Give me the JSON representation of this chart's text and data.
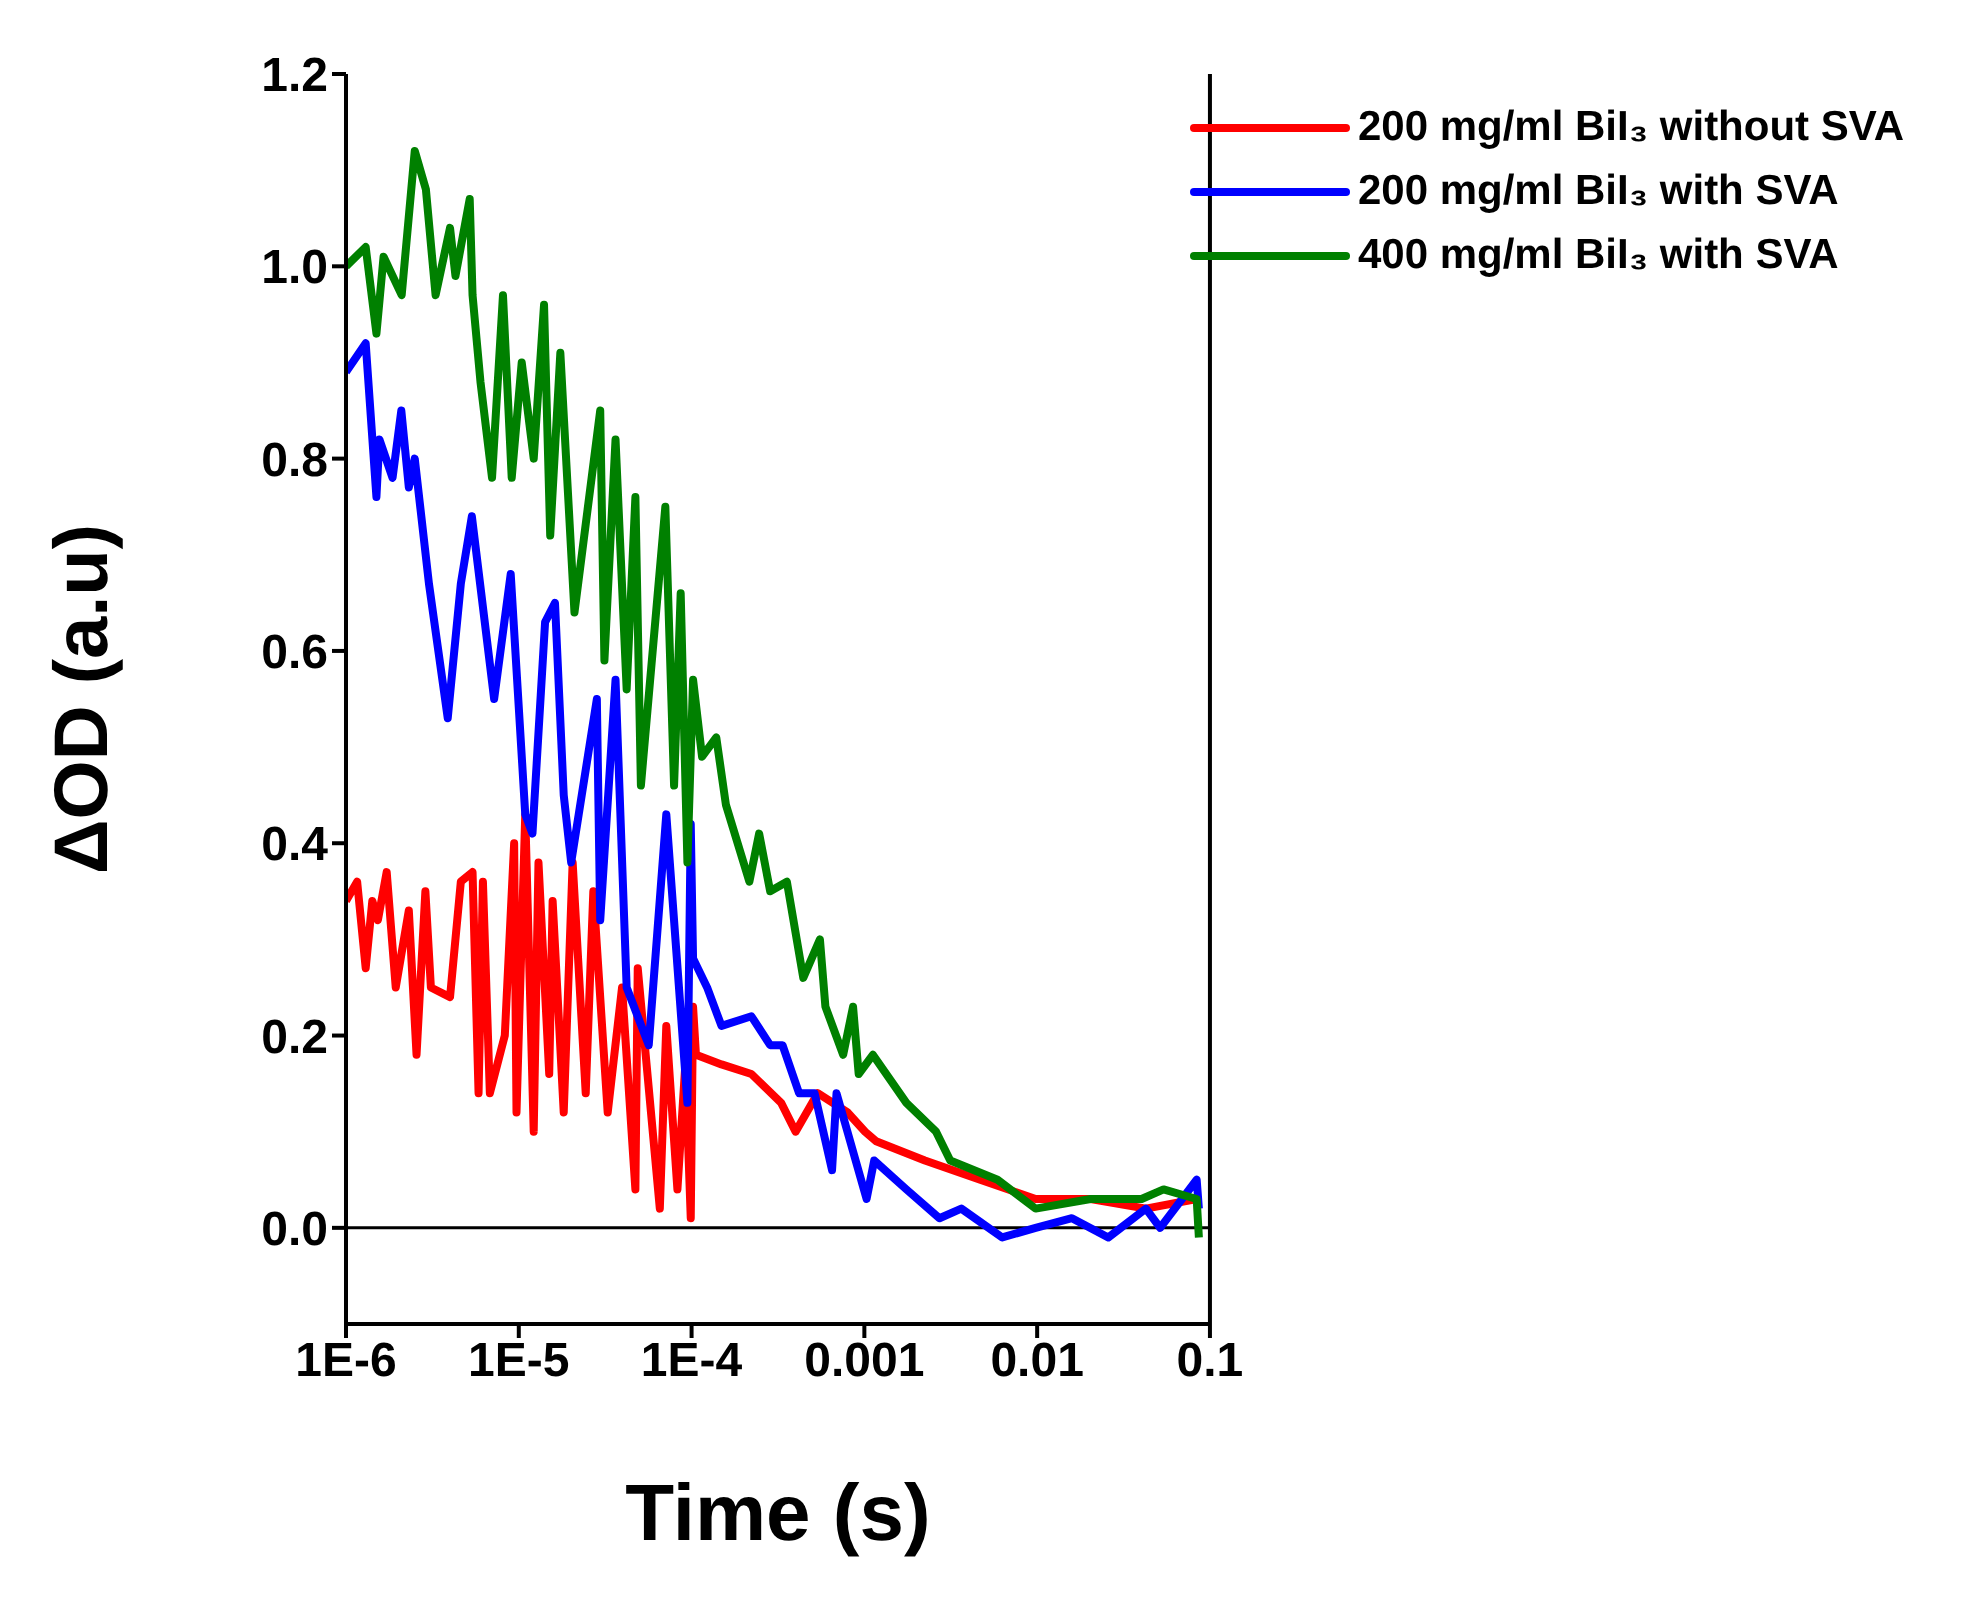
{
  "chart_data": {
    "type": "line",
    "xlabel": "Time (s)",
    "ylabel": "ΔOD (a.u)",
    "log": "x",
    "grid": false,
    "legend": "top right",
    "marker": "none",
    "line_style": "solid",
    "xlim": [
      1e-06,
      0.1
    ],
    "xticks": [
      {
        "value": 1e-06,
        "label": "1E-6"
      },
      {
        "value": 1e-05,
        "label": "1E-5"
      },
      {
        "value": 0.0001,
        "label": "1E-4"
      },
      0.001,
      0.01,
      0.1
    ],
    "ylim": [
      -0.1,
      1.2
    ],
    "yticks": [
      {
        "value": 0,
        "label": "0.0"
      },
      0.2,
      0.4,
      0.6,
      0.8,
      {
        "value": 1,
        "label": "1.0"
      },
      1.2
    ],
    "ref_lines": [
      {
        "axis": "y",
        "value": 0,
        "color": "#000000"
      }
    ],
    "series": [
      {
        "name": "200 mg/ml BiI₃ without SVA",
        "color": "#ff0000",
        "x": [
          1e-06,
          1.16e-06,
          1.3e-06,
          1.42e-06,
          1.53e-06,
          1.72e-06,
          1.94e-06,
          2.31e-06,
          2.56e-06,
          2.88e-06,
          3.1e-06,
          4e-06,
          4.62e-06,
          5.4e-06,
          5.85e-06,
          6.2e-06,
          6.8e-06,
          8.3e-06,
          9.4e-06,
          9.7e-06,
          1.09e-05,
          1.22e-05,
          1.3e-05,
          1.5e-05,
          1.57e-05,
          1.82e-05,
          2.05e-05,
          2.44e-05,
          2.7e-05,
          3.27e-05,
          3.96e-05,
          4.73e-05,
          4.88e-05,
          6.55e-05,
          7.14e-05,
          8.28e-05,
          9.2e-05,
          9.89e-05,
          0.000102,
          0.000106,
          0.000149,
          0.000222,
          0.00033,
          0.0004,
          0.000537,
          0.0008,
          0.00101,
          0.00117,
          0.00224,
          0.00468,
          0.0098,
          0.0204,
          0.0426,
          0.0838
        ],
        "values": [
          0.34,
          0.36,
          0.27,
          0.34,
          0.32,
          0.37,
          0.25,
          0.33,
          0.18,
          0.35,
          0.25,
          0.24,
          0.36,
          0.37,
          0.14,
          0.36,
          0.14,
          0.2,
          0.4,
          0.12,
          0.43,
          0.1,
          0.38,
          0.16,
          0.34,
          0.12,
          0.38,
          0.14,
          0.35,
          0.12,
          0.25,
          0.04,
          0.27,
          0.02,
          0.21,
          0.04,
          0.17,
          0.01,
          0.23,
          0.18,
          0.17,
          0.16,
          0.13,
          0.1,
          0.14,
          0.12,
          0.1,
          0.09,
          0.07,
          0.05,
          0.03,
          0.03,
          0.02,
          0.03
        ]
      },
      {
        "name": "200 mg/ml BiI₃ with SVA",
        "color": "#0000ff",
        "x": [
          1e-06,
          1.3e-06,
          1.5e-06,
          1.56e-06,
          1.86e-06,
          2.09e-06,
          2.31e-06,
          2.5e-06,
          3.02e-06,
          3.88e-06,
          4.62e-06,
          5.35e-06,
          7.2e-06,
          8.98e-06,
          1.09e-05,
          1.2e-05,
          1.42e-05,
          1.62e-05,
          1.82e-05,
          2.01e-05,
          2.83e-05,
          2.96e-05,
          3.63e-05,
          4.21e-05,
          5.65e-05,
          7.14e-05,
          9.46e-05,
          9.89e-05,
          0.000102,
          0.000123,
          0.000149,
          0.000222,
          0.000285,
          0.000336,
          0.000419,
          0.000515,
          0.00065,
          0.00069,
          0.00103,
          0.00114,
          0.00175,
          0.00272,
          0.00364,
          0.00628,
          0.0098,
          0.0159,
          0.0258,
          0.0426,
          0.0515,
          0.0838,
          0.0863
        ],
        "values": [
          0.89,
          0.92,
          0.76,
          0.82,
          0.78,
          0.85,
          0.77,
          0.8,
          0.67,
          0.53,
          0.67,
          0.74,
          0.55,
          0.68,
          0.43,
          0.41,
          0.63,
          0.65,
          0.45,
          0.38,
          0.55,
          0.32,
          0.57,
          0.25,
          0.19,
          0.43,
          0.13,
          0.42,
          0.28,
          0.25,
          0.21,
          0.22,
          0.19,
          0.19,
          0.14,
          0.14,
          0.06,
          0.14,
          0.03,
          0.07,
          0.04,
          0.01,
          0.02,
          -0.01,
          0,
          0.01,
          -0.01,
          0.02,
          0,
          0.05,
          0.02
        ]
      },
      {
        "name": "400 mg/ml BiI₃ with SVA",
        "color": "#008000",
        "x": [
          1e-06,
          1.3e-06,
          1.5e-06,
          1.65e-06,
          2.1e-06,
          2.5e-06,
          2.9e-06,
          3.3e-06,
          4e-06,
          4.3e-06,
          5.2e-06,
          5.4e-06,
          6e-06,
          7e-06,
          8.1e-06,
          9.1e-06,
          1.04e-05,
          1.22e-05,
          1.4e-05,
          1.52e-05,
          1.74e-05,
          2.1e-05,
          2.96e-05,
          3.13e-05,
          3.63e-05,
          4.21e-05,
          4.73e-05,
          5.09e-05,
          7.05e-05,
          7.92e-05,
          8.65e-05,
          9.46e-05,
          0.000102,
          0.000115,
          0.000139,
          0.000158,
          0.000216,
          0.000246,
          0.000285,
          0.000356,
          0.000443,
          0.000553,
          0.000595,
          0.000754,
          0.00086,
          0.000927,
          0.00112,
          0.00175,
          0.0026,
          0.00314,
          0.0059,
          0.0098,
          0.0204,
          0.0402,
          0.0539,
          0.0838,
          0.0863
        ],
        "values": [
          1,
          1.02,
          0.93,
          1.01,
          0.97,
          1.12,
          1.08,
          0.97,
          1.04,
          0.99,
          1.07,
          0.97,
          0.88,
          0.78,
          0.97,
          0.78,
          0.9,
          0.8,
          0.96,
          0.72,
          0.91,
          0.64,
          0.85,
          0.59,
          0.82,
          0.56,
          0.76,
          0.46,
          0.75,
          0.46,
          0.66,
          0.38,
          0.57,
          0.49,
          0.51,
          0.44,
          0.36,
          0.41,
          0.35,
          0.36,
          0.26,
          0.3,
          0.23,
          0.18,
          0.23,
          0.16,
          0.18,
          0.13,
          0.1,
          0.07,
          0.05,
          0.02,
          0.03,
          0.03,
          0.04,
          0.03,
          -0.01
        ]
      }
    ]
  }
}
